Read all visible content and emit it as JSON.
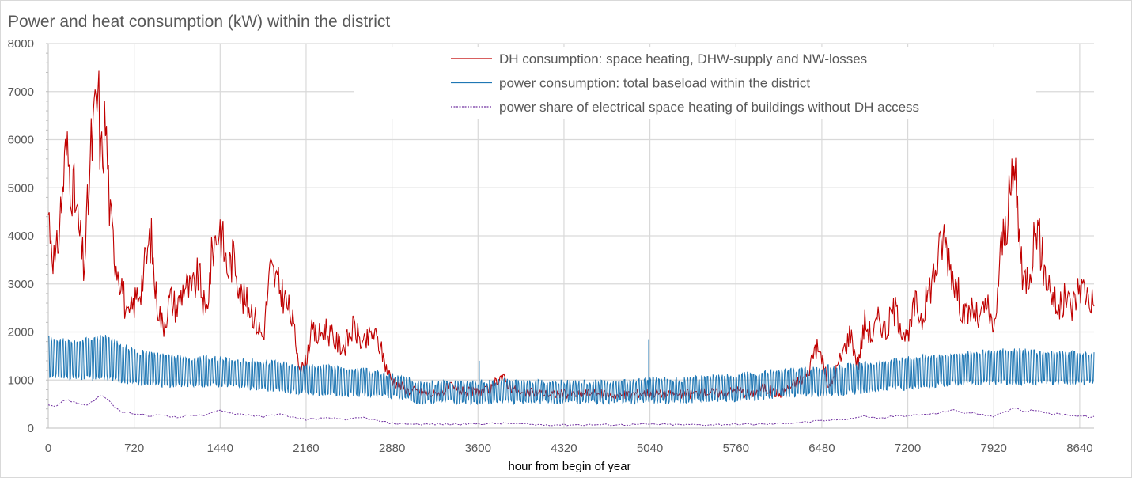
{
  "chart_data": {
    "type": "line",
    "title": "Power and heat consumption (kW) within the district",
    "xlabel": "hour from begin of year",
    "ylabel": "",
    "xlim": [
      0,
      8760
    ],
    "ylim": [
      0,
      8000
    ],
    "x_ticks": [
      0,
      720,
      1440,
      2160,
      2880,
      3600,
      4320,
      5040,
      5760,
      6480,
      7200,
      7920,
      8640
    ],
    "y_ticks": [
      0,
      1000,
      2000,
      3000,
      4000,
      5000,
      6000,
      7000,
      8000
    ],
    "grid": true,
    "legend_position": "top-right",
    "series": [
      {
        "name": "DH consumption: space heating, DHW-supply and NW-losses",
        "color": "#c00000",
        "style": "solid",
        "x": [
          0,
          60,
          150,
          220,
          300,
          360,
          420,
          440,
          480,
          520,
          560,
          620,
          660,
          720,
          780,
          860,
          900,
          960,
          1020,
          1080,
          1140,
          1200,
          1260,
          1320,
          1380,
          1440,
          1500,
          1560,
          1620,
          1700,
          1760,
          1800,
          1860,
          1920,
          1980,
          2040,
          2080,
          2120,
          2160,
          2200,
          2260,
          2320,
          2400,
          2480,
          2560,
          2640,
          2720,
          2780,
          2840,
          2880,
          3000,
          3120,
          3240,
          3360,
          3480,
          3600,
          3720,
          3780,
          3840,
          3960,
          4080,
          4200,
          4320,
          4440,
          4560,
          4680,
          4800,
          4920,
          5040,
          5160,
          5280,
          5400,
          5520,
          5640,
          5760,
          5880,
          6000,
          6120,
          6240,
          6360,
          6420,
          6480,
          6540,
          6600,
          6660,
          6720,
          6780,
          6840,
          6900,
          6960,
          7020,
          7080,
          7140,
          7200,
          7260,
          7320,
          7380,
          7440,
          7500,
          7560,
          7620,
          7680,
          7740,
          7800,
          7860,
          7920,
          7980,
          8040,
          8100,
          8160,
          8220,
          8280,
          8340,
          8400,
          8460,
          8520,
          8580,
          8640,
          8700,
          8760
        ],
        "y": [
          4500,
          3300,
          5800,
          4800,
          3300,
          5800,
          7000,
          5500,
          6400,
          4300,
          3600,
          3000,
          2200,
          2600,
          3000,
          4000,
          2800,
          2100,
          2700,
          2500,
          3000,
          2800,
          3200,
          2300,
          3800,
          4200,
          3300,
          3600,
          2700,
          2500,
          2100,
          1900,
          3300,
          3000,
          2700,
          2300,
          1700,
          1200,
          1400,
          2000,
          1900,
          2100,
          1800,
          1700,
          2100,
          1700,
          2000,
          1700,
          1200,
          1000,
          800,
          750,
          700,
          850,
          750,
          750,
          800,
          1100,
          950,
          700,
          750,
          700,
          720,
          700,
          750,
          700,
          680,
          720,
          750,
          700,
          700,
          720,
          750,
          720,
          800,
          700,
          850,
          700,
          900,
          1100,
          1700,
          1500,
          800,
          1200,
          1600,
          2000,
          1300,
          2200,
          1900,
          2300,
          2000,
          2500,
          2200,
          1800,
          2600,
          2300,
          2900,
          3400,
          4000,
          3400,
          2800,
          2300,
          2500,
          2200,
          2600,
          1900,
          3700,
          4500,
          5400,
          3000,
          3300,
          4300,
          3300,
          2900,
          2400,
          2700,
          2500,
          3000,
          2800,
          2600
        ]
      },
      {
        "name": "power consumption: total baseload within the district",
        "color": "#1f77b4",
        "style": "solid",
        "x": [
          0,
          240,
          480,
          720,
          960,
          1200,
          1440,
          1680,
          1920,
          2160,
          2400,
          2640,
          2880,
          3120,
          3360,
          3600,
          3840,
          4080,
          4320,
          4560,
          4800,
          5040,
          5280,
          5520,
          5760,
          6000,
          6240,
          6480,
          6720,
          6960,
          7200,
          7440,
          7680,
          7920,
          8160,
          8400,
          8640,
          8760
        ],
        "y_high": [
          1850,
          1800,
          1900,
          1600,
          1500,
          1450,
          1450,
          1400,
          1350,
          1300,
          1250,
          1200,
          1100,
          950,
          950,
          950,
          1000,
          950,
          950,
          950,
          950,
          1000,
          1000,
          1050,
          1100,
          1150,
          1200,
          1250,
          1300,
          1350,
          1450,
          1500,
          1550,
          1600,
          1600,
          1550,
          1550,
          1550
        ],
        "y_low": [
          1100,
          1050,
          1050,
          950,
          900,
          900,
          900,
          850,
          800,
          750,
          700,
          700,
          650,
          550,
          550,
          550,
          550,
          550,
          550,
          550,
          550,
          550,
          550,
          600,
          600,
          650,
          700,
          700,
          750,
          800,
          850,
          900,
          950,
          950,
          950,
          950,
          950,
          950
        ],
        "spikes": [
          {
            "x": 3610,
            "y": 1400
          },
          {
            "x": 5030,
            "y": 1850
          }
        ]
      },
      {
        "name": "power share of electrical space heating of buildings without DH access",
        "color": "#7030a0",
        "style": "dotted",
        "x": [
          0,
          60,
          150,
          240,
          320,
          380,
          440,
          480,
          540,
          600,
          720,
          840,
          960,
          1080,
          1200,
          1320,
          1440,
          1560,
          1680,
          1800,
          1920,
          2040,
          2160,
          2280,
          2400,
          2520,
          2640,
          2760,
          2880,
          3120,
          3360,
          3600,
          3840,
          4080,
          4320,
          4560,
          4800,
          5040,
          5280,
          5520,
          5760,
          6000,
          6240,
          6480,
          6720,
          6840,
          6960,
          7080,
          7200,
          7320,
          7440,
          7560,
          7680,
          7800,
          7920,
          8040,
          8100,
          8160,
          8280,
          8400,
          8520,
          8640,
          8760
        ],
        "y": [
          500,
          450,
          600,
          520,
          480,
          560,
          700,
          620,
          480,
          350,
          300,
          250,
          280,
          220,
          280,
          260,
          380,
          300,
          280,
          230,
          300,
          230,
          180,
          200,
          200,
          180,
          220,
          150,
          100,
          80,
          80,
          90,
          100,
          70,
          70,
          70,
          70,
          80,
          70,
          70,
          80,
          80,
          110,
          150,
          200,
          250,
          200,
          250,
          250,
          280,
          300,
          380,
          320,
          300,
          250,
          350,
          450,
          350,
          380,
          300,
          280,
          250,
          230
        ]
      }
    ]
  }
}
